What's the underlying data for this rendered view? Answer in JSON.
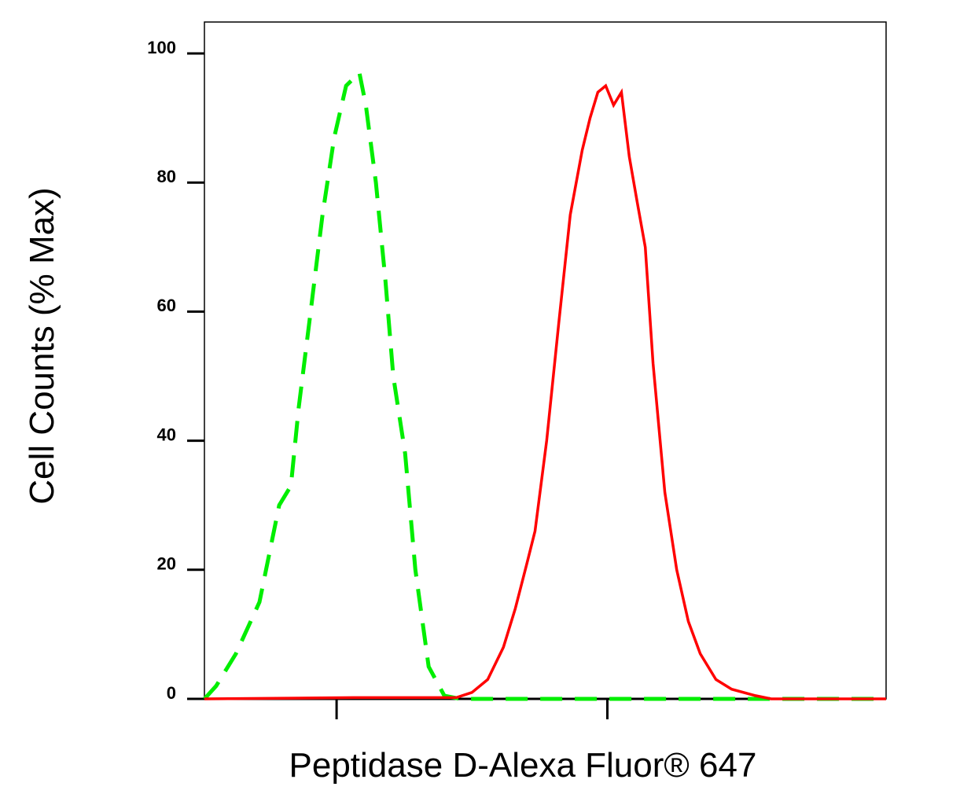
{
  "chart_data": {
    "type": "line",
    "xlabel": "Peptidase D-Alexa Fluor® 647",
    "ylabel": "Cell Counts (% Max)",
    "xscale": "log",
    "xlim": [
      325,
      107000
    ],
    "xticks": [
      1000,
      10000
    ],
    "ylim": [
      0,
      100
    ],
    "yticks": [
      0,
      20,
      40,
      60,
      80,
      100
    ],
    "series": [
      {
        "color": "#00ee00",
        "dashed": true,
        "x": [
          325,
          359,
          425,
          519,
          614,
          678,
          724,
          802,
          887,
          980,
          1084,
          1214,
          1282,
          1397,
          1514,
          1619,
          1791,
          1954,
          2188,
          2500,
          2858,
          107000
        ],
        "values": [
          0,
          2,
          7,
          15,
          30,
          33,
          45,
          60,
          75,
          87,
          95,
          97,
          92,
          80,
          65,
          50,
          38,
          20,
          5,
          0.5,
          0,
          0
        ]
      },
      {
        "color": "#ff0000",
        "dashed": false,
        "x": [
          325,
          1159,
          2767,
          3162,
          3614,
          4131,
          4571,
          5047,
          5405,
          5970,
          6607,
          7295,
          8072,
          8630,
          9226,
          9863,
          10544,
          11272,
          12050,
          12882,
          13800,
          14750,
          16300,
          18030,
          19910,
          22030,
          25180,
          28790,
          35220,
          40260,
          107000
        ],
        "values": [
          0,
          0.2,
          0.2,
          1,
          3,
          8,
          14,
          21,
          26,
          40,
          58,
          75,
          85,
          90,
          94,
          95,
          92,
          94,
          84,
          77,
          70,
          52,
          32,
          20,
          12,
          7,
          3,
          1.5,
          0.5,
          0,
          0
        ]
      }
    ]
  }
}
